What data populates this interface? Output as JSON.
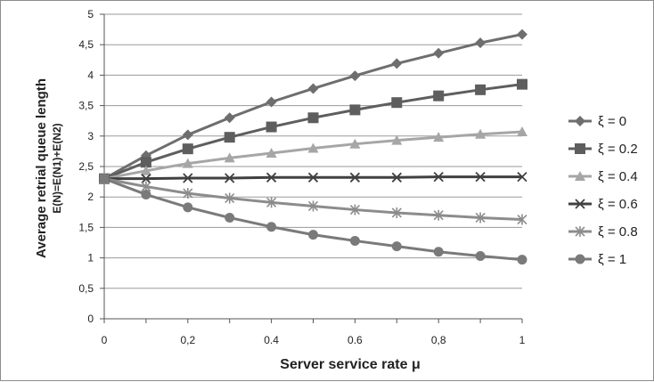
{
  "chart_data": {
    "type": "line",
    "xlabel": "Server service rate  μ",
    "ylabel_line1": "Average retrial queue length",
    "ylabel_line2": "E(N)=E(N1)+E(N2)",
    "xlim": [
      0,
      1
    ],
    "ylim": [
      0,
      5
    ],
    "x_ticks": [
      "0",
      "0,2",
      "0.4",
      "0.6",
      "0,8",
      "1"
    ],
    "y_ticks": [
      "0",
      "0,5",
      "1",
      "1,5",
      "2",
      "2,5",
      "3",
      "3,5",
      "4",
      "4,5",
      "5"
    ],
    "grid": "horizontal",
    "legend_position": "right",
    "x": [
      0,
      0.1,
      0.2,
      0.3,
      0.4,
      0.5,
      0.6,
      0.7,
      0.8,
      0.9,
      1.0
    ],
    "series": [
      {
        "name": "ξ = 0",
        "marker": "diamond",
        "color": "#6e6e6e",
        "values": [
          2.3,
          2.68,
          3.02,
          3.3,
          3.56,
          3.78,
          3.99,
          4.19,
          4.36,
          4.53,
          4.67
        ]
      },
      {
        "name": "ξ = 0.2",
        "marker": "square",
        "color": "#5e5e5e",
        "values": [
          2.3,
          2.57,
          2.79,
          2.98,
          3.15,
          3.3,
          3.43,
          3.55,
          3.66,
          3.76,
          3.85
        ]
      },
      {
        "name": "ξ = 0.4",
        "marker": "triangle",
        "color": "#a6a6a6",
        "values": [
          2.3,
          2.43,
          2.55,
          2.64,
          2.72,
          2.8,
          2.87,
          2.93,
          2.98,
          3.03,
          3.07
        ]
      },
      {
        "name": "ξ = 0.6",
        "marker": "x",
        "color": "#404040",
        "values": [
          2.3,
          2.3,
          2.31,
          2.31,
          2.32,
          2.32,
          2.32,
          2.32,
          2.33,
          2.33,
          2.33
        ]
      },
      {
        "name": "ξ = 0.8",
        "marker": "star",
        "color": "#8c8c8c",
        "values": [
          2.3,
          2.17,
          2.06,
          1.98,
          1.91,
          1.85,
          1.79,
          1.74,
          1.7,
          1.66,
          1.63
        ]
      },
      {
        "name": "ξ = 1",
        "marker": "circle",
        "color": "#7a7a7a",
        "values": [
          2.3,
          2.04,
          1.83,
          1.66,
          1.51,
          1.38,
          1.28,
          1.19,
          1.1,
          1.03,
          0.97
        ]
      }
    ]
  }
}
